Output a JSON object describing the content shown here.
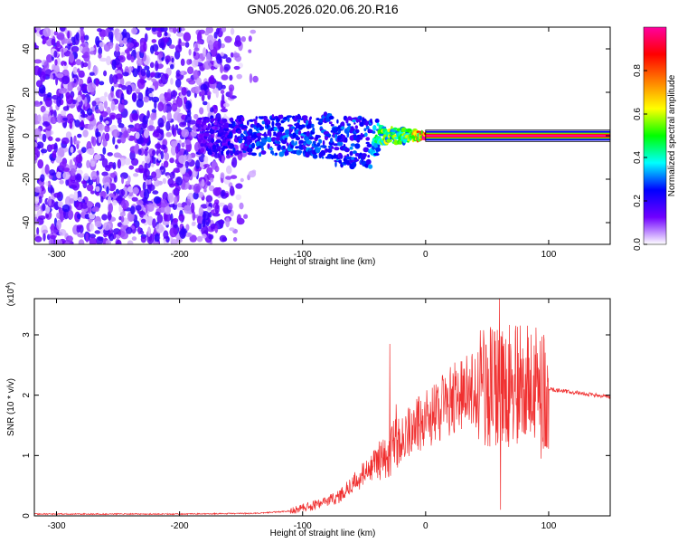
{
  "figure": {
    "title": "GN05.2026.020.06.20.R16"
  },
  "chart_data": [
    {
      "type": "heatmap",
      "xlabel": "Height of straight line (km)",
      "ylabel": "Frequency (Hz)",
      "xlim": [
        -318,
        150
      ],
      "ylim": [
        -50,
        50
      ],
      "xticks": [
        -300,
        -200,
        -100,
        0,
        100
      ],
      "yticks": [
        -40,
        -20,
        0,
        20,
        40
      ],
      "colorbar": {
        "label": "Normalized spectral amplitude",
        "range": [
          0,
          1
        ],
        "ticks": [
          0.0,
          0.2,
          0.4,
          0.6,
          0.8
        ],
        "tick_labels": [
          "0.0",
          "0.2",
          "0.4",
          "0.6",
          "0.8"
        ],
        "colormap": [
          "#ffffff",
          "#7000ff",
          "#0000ff",
          "#00ffff",
          "#00ff00",
          "#ffff00",
          "#ff8000",
          "#ff0000",
          "#ff00a0"
        ]
      },
      "features": {
        "noise_region_x": [
          -318,
          -135
        ],
        "noise_amplitude": 0.12,
        "signal_start_x": -185,
        "signal_center_freq": 0,
        "signal_spread": [
          {
            "x": -185,
            "spread": 8,
            "amp": 0.18
          },
          {
            "x": -130,
            "spread": 9,
            "amp": 0.3
          },
          {
            "x": -100,
            "spread": 9,
            "amp": 0.3
          },
          {
            "x": -70,
            "spread": 11,
            "amp": 0.3
          },
          {
            "x": -45,
            "spread": 12,
            "amp": 0.3
          },
          {
            "x": -35,
            "spread": 4,
            "amp": 0.6
          },
          {
            "x": -15,
            "spread": 3,
            "amp": 0.55
          },
          {
            "x": 0,
            "spread": 1,
            "amp": 1.0
          },
          {
            "x": 150,
            "spread": 1,
            "amp": 1.0
          }
        ]
      }
    },
    {
      "type": "line",
      "xlabel": "Height of straight line (km)",
      "ylabel": "SNR (10 * v/v)",
      "multiplier": "(x10",
      "multiplier_exp": "4",
      "multiplier_close": ")",
      "xlim": [
        -318,
        150
      ],
      "ylim": [
        0,
        3.6
      ],
      "xticks": [
        -300,
        -200,
        -100,
        0,
        100
      ],
      "yticks": [
        0,
        1,
        2,
        3
      ],
      "color": "#f03030",
      "envelope": [
        {
          "x": -318,
          "y": 0.03
        },
        {
          "x": -200,
          "y": 0.03
        },
        {
          "x": -140,
          "y": 0.04
        },
        {
          "x": -110,
          "y": 0.08
        },
        {
          "x": -90,
          "y": 0.18
        },
        {
          "x": -70,
          "y": 0.32
        },
        {
          "x": -50,
          "y": 0.7
        },
        {
          "x": -30,
          "y": 1.05
        },
        {
          "x": -10,
          "y": 1.45
        },
        {
          "x": 10,
          "y": 1.75
        },
        {
          "x": 30,
          "y": 2.05
        },
        {
          "x": 45,
          "y": 2.15
        },
        {
          "x": 60,
          "y": 2.2
        },
        {
          "x": 80,
          "y": 2.15
        },
        {
          "x": 100,
          "y": 2.1
        },
        {
          "x": 150,
          "y": 1.97
        }
      ],
      "spikes": [
        {
          "x": -29,
          "y": 2.85
        },
        {
          "x": -24,
          "y": 1.85
        },
        {
          "x": 56,
          "y": 3.05
        },
        {
          "x": 60,
          "y": 3.6
        },
        {
          "x": 61,
          "y": 0.1
        },
        {
          "x": 69,
          "y": 2.85
        },
        {
          "x": 96,
          "y": 3.0
        },
        {
          "x": 94,
          "y": 0.95
        }
      ]
    }
  ]
}
